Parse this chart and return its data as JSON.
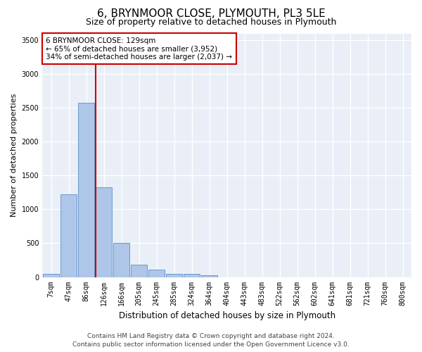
{
  "title": "6, BRYNMOOR CLOSE, PLYMOUTH, PL3 5LE",
  "subtitle": "Size of property relative to detached houses in Plymouth",
  "xlabel": "Distribution of detached houses by size in Plymouth",
  "ylabel": "Number of detached properties",
  "categories": [
    "7sqm",
    "47sqm",
    "86sqm",
    "126sqm",
    "166sqm",
    "205sqm",
    "245sqm",
    "285sqm",
    "324sqm",
    "364sqm",
    "404sqm",
    "443sqm",
    "483sqm",
    "522sqm",
    "562sqm",
    "602sqm",
    "641sqm",
    "681sqm",
    "721sqm",
    "760sqm",
    "800sqm"
  ],
  "bar_values": [
    50,
    1220,
    2580,
    1330,
    500,
    185,
    105,
    45,
    45,
    30,
    0,
    0,
    0,
    0,
    0,
    0,
    0,
    0,
    0,
    0,
    0
  ],
  "bar_color": "#aec6e8",
  "bar_edge_color": "#5b8fc9",
  "property_line_x": 3.0,
  "property_line_color": "#cc0000",
  "annotation_text": "6 BRYNMOOR CLOSE: 129sqm\n← 65% of detached houses are smaller (3,952)\n34% of semi-detached houses are larger (2,037) →",
  "annotation_box_color": "#ffffff",
  "annotation_box_edge_color": "#cc0000",
  "ylim": [
    0,
    3600
  ],
  "yticks": [
    0,
    500,
    1000,
    1500,
    2000,
    2500,
    3000,
    3500
  ],
  "background_color": "#eaeff7",
  "grid_color": "#ffffff",
  "footer_line1": "Contains HM Land Registry data © Crown copyright and database right 2024.",
  "footer_line2": "Contains public sector information licensed under the Open Government Licence v3.0.",
  "title_fontsize": 11,
  "subtitle_fontsize": 9,
  "xlabel_fontsize": 8.5,
  "ylabel_fontsize": 8,
  "tick_fontsize": 7,
  "footer_fontsize": 6.5
}
